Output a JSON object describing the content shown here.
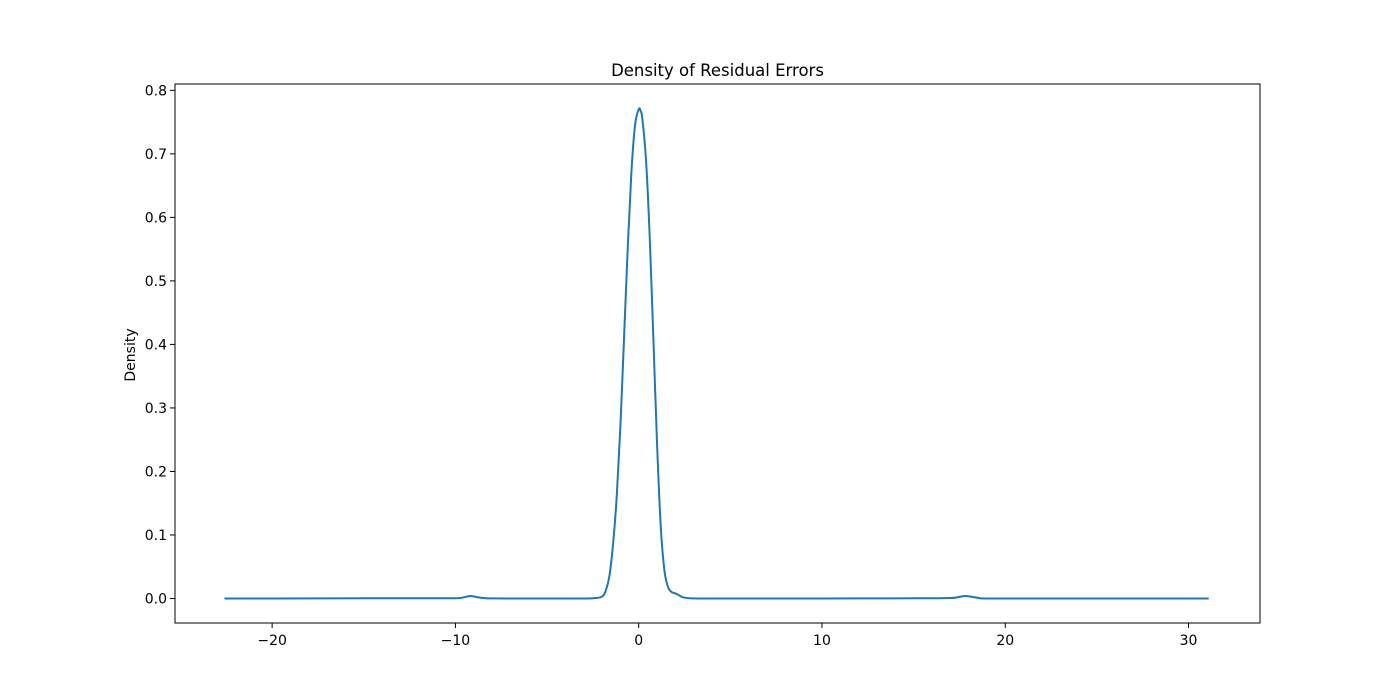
{
  "chart_data": {
    "type": "line",
    "title": "Density of Residual Errors",
    "xlabel": "",
    "ylabel": "Density",
    "xlim": [
      -25.3,
      33.9
    ],
    "ylim": [
      -0.0386,
      0.81
    ],
    "xticks": [
      -20,
      -10,
      0,
      10,
      20,
      30
    ],
    "xtick_labels": [
      "−20",
      "−10",
      "0",
      "10",
      "20",
      "30"
    ],
    "yticks": [
      0.0,
      0.1,
      0.2,
      0.3,
      0.4,
      0.5,
      0.6,
      0.7,
      0.8
    ],
    "ytick_labels": [
      "0.0",
      "0.1",
      "0.2",
      "0.3",
      "0.4",
      "0.5",
      "0.6",
      "0.7",
      "0.8"
    ],
    "grid": false,
    "legend": "none",
    "series": [
      {
        "color": "#1f77b4",
        "x": [
          -22.6,
          -20,
          -15,
          -12,
          -10,
          -9.6,
          -9.2,
          -8.8,
          -8.4,
          -8.0,
          -6,
          -4,
          -3,
          -2.4,
          -2.0,
          -1.8,
          -1.6,
          -1.4,
          -1.2,
          -1.0,
          -0.8,
          -0.6,
          -0.4,
          -0.2,
          0.0,
          0.1,
          0.2,
          0.4,
          0.6,
          0.8,
          1.0,
          1.2,
          1.4,
          1.6,
          1.8,
          2.0,
          2.2,
          2.4,
          2.8,
          3.5,
          5,
          10,
          15,
          17.0,
          17.4,
          17.8,
          18.2,
          18.6,
          19,
          22,
          26,
          31.1
        ],
        "y": [
          0.0,
          0.0,
          0.0003,
          0.0004,
          0.0004,
          0.0015,
          0.004,
          0.002,
          0.0005,
          0.0001,
          0.0,
          0.0,
          0.0,
          0.0005,
          0.003,
          0.012,
          0.035,
          0.085,
          0.16,
          0.27,
          0.41,
          0.55,
          0.67,
          0.745,
          0.77,
          0.768,
          0.755,
          0.69,
          0.57,
          0.41,
          0.245,
          0.115,
          0.045,
          0.018,
          0.01,
          0.008,
          0.005,
          0.002,
          0.0004,
          0.0,
          0.0,
          0.0,
          0.0003,
          0.0008,
          0.002,
          0.004,
          0.0025,
          0.0006,
          0.0,
          0.0,
          0.0,
          0.0
        ]
      }
    ]
  }
}
